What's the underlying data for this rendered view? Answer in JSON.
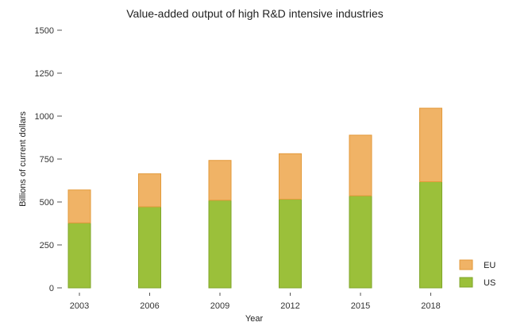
{
  "chart_data": {
    "type": "bar",
    "stacked": true,
    "title": "Value-added output of high R&D intensive industries",
    "xlabel": "Year",
    "ylabel": "Billions of current dollars",
    "categories": [
      "2003",
      "2006",
      "2009",
      "2012",
      "2015",
      "2018"
    ],
    "series": [
      {
        "name": "US",
        "color": "#9bc03a",
        "edge": "#7fa62a",
        "values": [
          378,
          472,
          510,
          516,
          536,
          618
        ]
      },
      {
        "name": "EU",
        "color": "#f0b366",
        "edge": "#e39a3a",
        "values": [
          192,
          192,
          232,
          265,
          353,
          428
        ]
      }
    ],
    "ylim": [
      0,
      1500
    ],
    "yticks": [
      0,
      250,
      500,
      750,
      1000,
      1250,
      1500
    ],
    "grid": false,
    "legend_position": "bottom-right",
    "legend_order": [
      "EU",
      "US"
    ]
  }
}
